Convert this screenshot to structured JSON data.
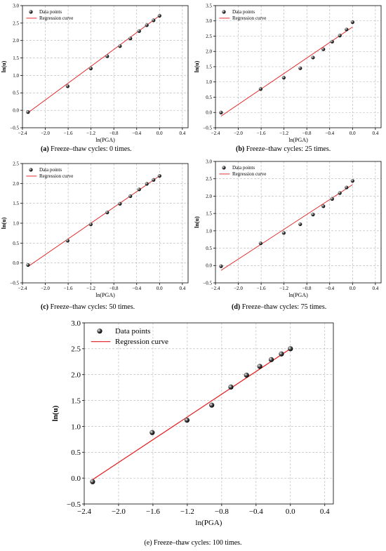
{
  "chart_data": [
    {
      "type": "scatter",
      "caption_label": "(a)",
      "caption_text": "Freeze–thaw cycles: 0 times.",
      "xlabel": "ln(PGA)",
      "ylabel": "ln(u)",
      "xlim": [
        -2.4,
        0.5
      ],
      "ylim": [
        -0.5,
        3.0
      ],
      "xticks": [
        -2.4,
        -2.0,
        -1.6,
        -1.2,
        -0.8,
        -0.4,
        0.0,
        0.4
      ],
      "xtick_labels": [
        "−2.4",
        "−2.0",
        "−1.6",
        "−1.2",
        "−0.8",
        "−0.4",
        "0.0",
        "0.4"
      ],
      "yticks": [
        -0.5,
        0.0,
        0.5,
        1.0,
        1.5,
        2.0,
        2.5,
        3.0
      ],
      "ytick_labels": [
        "−0.5",
        "0.0",
        "0.5",
        "1.0",
        "1.5",
        "2.0",
        "2.5",
        "3.0"
      ],
      "grid": true,
      "legend_position": "top-left",
      "series": [
        {
          "name": "Data points",
          "kind": "scatter",
          "x": [
            -2.303,
            -1.609,
            -1.204,
            -0.916,
            -0.693,
            -0.511,
            -0.357,
            -0.223,
            -0.105,
            0.0
          ],
          "y": [
            -0.05,
            0.69,
            1.2,
            1.55,
            1.84,
            2.06,
            2.27,
            2.44,
            2.58,
            2.71
          ]
        },
        {
          "name": "Regression curve",
          "kind": "line",
          "color": "#e41a1c",
          "x": [
            -2.303,
            0.0
          ],
          "y": [
            -0.07,
            2.71
          ]
        }
      ]
    },
    {
      "type": "scatter",
      "caption_label": "(b)",
      "caption_text": "Freeze–thaw cycles: 25 times.",
      "xlabel": "ln(PGA)",
      "ylabel": "ln(u)",
      "xlim": [
        -2.4,
        0.5
      ],
      "ylim": [
        -0.5,
        3.5
      ],
      "xticks": [
        -2.4,
        -2.0,
        -1.6,
        -1.2,
        -0.8,
        -0.4,
        0.0,
        0.4
      ],
      "xtick_labels": [
        "−2.4",
        "−2.0",
        "−1.6",
        "−1.2",
        "−0.8",
        "−0.4",
        "0.0",
        "0.4"
      ],
      "yticks": [
        -0.5,
        0.0,
        0.5,
        1.0,
        1.5,
        2.0,
        2.5,
        3.0,
        3.5
      ],
      "ytick_labels": [
        "−0.5",
        "0.0",
        "0.5",
        "1.0",
        "1.5",
        "2.0",
        "2.5",
        "3.0",
        "3.5"
      ],
      "grid": true,
      "legend_position": "top-left",
      "series": [
        {
          "name": "Data points",
          "kind": "scatter",
          "x": [
            -2.303,
            -1.609,
            -1.204,
            -0.916,
            -0.693,
            -0.511,
            -0.357,
            -0.223,
            -0.105,
            0.0
          ],
          "y": [
            0.0,
            0.77,
            1.14,
            1.45,
            1.8,
            2.07,
            2.32,
            2.52,
            2.72,
            2.96
          ]
        },
        {
          "name": "Regression curve",
          "kind": "line",
          "color": "#e41a1c",
          "x": [
            -2.303,
            0.0
          ],
          "y": [
            -0.12,
            2.8
          ]
        }
      ]
    },
    {
      "type": "scatter",
      "caption_label": "(c)",
      "caption_text": "Freeze–thaw cycles: 50 times.",
      "xlabel": "ln(PGA)",
      "ylabel": "ln(u)",
      "xlim": [
        -2.4,
        0.5
      ],
      "ylim": [
        -0.5,
        2.5
      ],
      "xticks": [
        -2.4,
        -2.0,
        -1.6,
        -1.2,
        -0.8,
        -0.4,
        0.0,
        0.4
      ],
      "xtick_labels": [
        "−2.4",
        "−2.0",
        "−1.6",
        "−1.2",
        "−0.8",
        "−0.4",
        "0.0",
        "0.4"
      ],
      "yticks": [
        -0.5,
        0.0,
        0.5,
        1.0,
        1.5,
        2.0,
        2.5
      ],
      "ytick_labels": [
        "−0.5",
        "0.0",
        "0.5",
        "1.0",
        "1.5",
        "2.0",
        "2.5"
      ],
      "grid": true,
      "legend_position": "top-left",
      "series": [
        {
          "name": "Data points",
          "kind": "scatter",
          "x": [
            -2.303,
            -1.609,
            -1.204,
            -0.916,
            -0.693,
            -0.511,
            -0.357,
            -0.223,
            -0.105,
            0.0
          ],
          "y": [
            -0.05,
            0.56,
            0.97,
            1.27,
            1.49,
            1.68,
            1.85,
            1.99,
            2.09,
            2.19
          ]
        },
        {
          "name": "Regression curve",
          "kind": "line",
          "color": "#e41a1c",
          "x": [
            -2.303,
            0.0
          ],
          "y": [
            -0.09,
            2.19
          ]
        }
      ]
    },
    {
      "type": "scatter",
      "caption_label": "(d)",
      "caption_text": "Freeze–thaw cycles: 75 times.",
      "xlabel": "ln(PGA)",
      "ylabel": "ln(u)",
      "xlim": [
        -2.4,
        0.5
      ],
      "ylim": [
        -0.5,
        3.0
      ],
      "xticks": [
        -2.4,
        -2.0,
        -1.6,
        -1.2,
        -0.8,
        -0.4,
        0.0,
        0.4
      ],
      "xtick_labels": [
        "−2.4",
        "−2.0",
        "−1.6",
        "−1.2",
        "−0.8",
        "−0.4",
        "0.0",
        "0.4"
      ],
      "yticks": [
        -0.5,
        0.0,
        0.5,
        1.0,
        1.5,
        2.0,
        2.5,
        3.0
      ],
      "ytick_labels": [
        "−0.5",
        "0.0",
        "0.5",
        "1.0",
        "1.5",
        "2.0",
        "2.5",
        "3.0"
      ],
      "grid": true,
      "legend_position": "top-left",
      "series": [
        {
          "name": "Data points",
          "kind": "scatter",
          "x": [
            -2.303,
            -1.609,
            -1.204,
            -0.916,
            -0.693,
            -0.511,
            -0.357,
            -0.223,
            -0.105,
            0.0
          ],
          "y": [
            -0.02,
            0.64,
            0.94,
            1.19,
            1.47,
            1.71,
            1.92,
            2.09,
            2.25,
            2.44
          ]
        },
        {
          "name": "Regression curve",
          "kind": "line",
          "color": "#e41a1c",
          "x": [
            -2.303,
            0.0
          ],
          "y": [
            -0.14,
            2.33
          ]
        }
      ]
    },
    {
      "type": "scatter",
      "caption_label": "",
      "caption_text": "(e) Freeze–thaw cycles: 100 times.",
      "xlabel": "ln(PGA)",
      "ylabel": "ln(u)",
      "xlim": [
        -2.4,
        0.5
      ],
      "ylim": [
        -0.5,
        3.0
      ],
      "xticks": [
        -2.4,
        -2.0,
        -1.6,
        -1.2,
        -0.8,
        -0.4,
        0.0,
        0.4
      ],
      "xtick_labels": [
        "−2.4",
        "−2.0",
        "−1.6",
        "−1.2",
        "−0.8",
        "−0.4",
        "0.0",
        "0.4"
      ],
      "yticks": [
        -0.5,
        0.0,
        0.5,
        1.0,
        1.5,
        2.0,
        2.5,
        3.0
      ],
      "ytick_labels": [
        "−0.5",
        "0.0",
        "0.5",
        "1.0",
        "1.5",
        "2.0",
        "2.5",
        "3.0"
      ],
      "grid": true,
      "legend_position": "top-left",
      "series": [
        {
          "name": "Data points",
          "kind": "scatter",
          "x": [
            -2.303,
            -1.609,
            -1.204,
            -0.916,
            -0.693,
            -0.511,
            -0.357,
            -0.223,
            -0.105,
            0.0
          ],
          "y": [
            -0.07,
            0.88,
            1.12,
            1.41,
            1.76,
            1.99,
            2.16,
            2.29,
            2.4,
            2.5
          ]
        },
        {
          "name": "Regression curve",
          "kind": "line",
          "color": "#e41a1c",
          "x": [
            -2.303,
            0.0
          ],
          "y": [
            -0.03,
            2.5
          ]
        }
      ]
    }
  ]
}
